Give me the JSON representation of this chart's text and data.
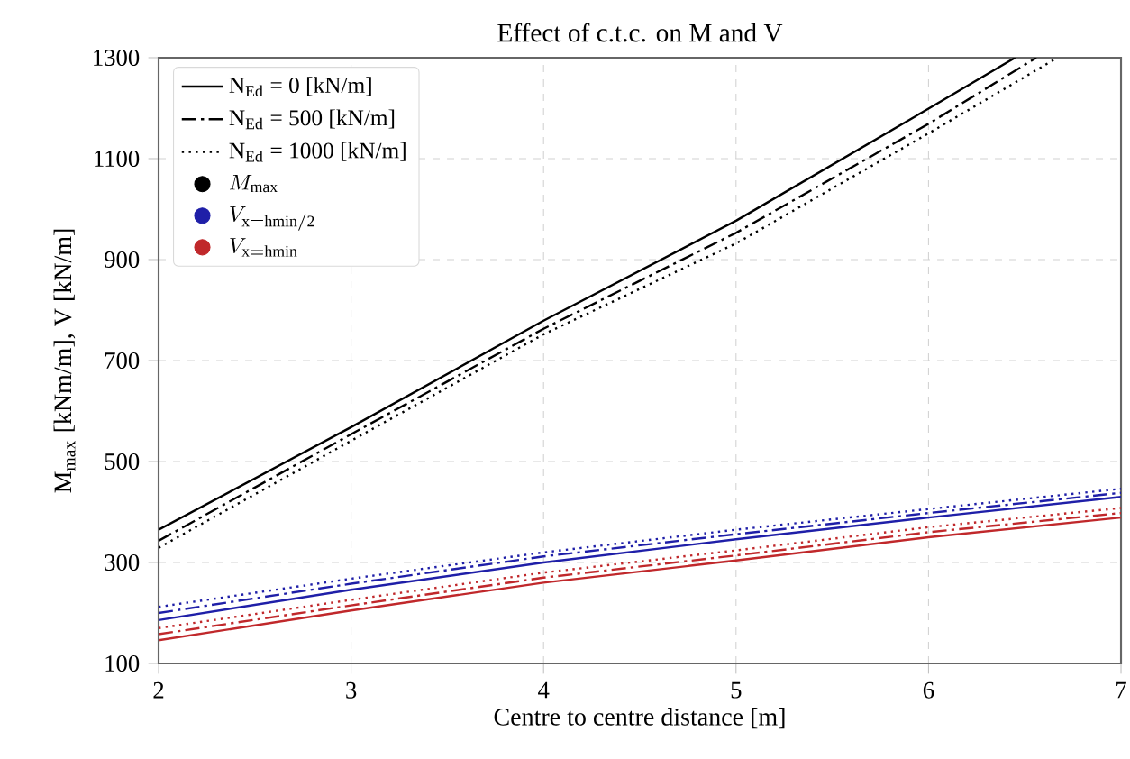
{
  "chart_data": {
    "type": "line",
    "title": "Effect of c.t.c. on M and V",
    "xlabel": "Centre to centre distance [m]",
    "ylabel": "M$_{max}$ [kNm/m],  V [kN/m]",
    "xlim": [
      2,
      7
    ],
    "ylim": [
      100,
      1300
    ],
    "xticks": [
      2,
      3,
      4,
      5,
      6,
      7
    ],
    "yticks": [
      100,
      300,
      500,
      700,
      900,
      1100,
      1300
    ],
    "grid": true,
    "legend": "top left",
    "marker": "none",
    "annotations": [
      "N$_{Ed}$ = 0 [kN/m]",
      "N$_{Ed}$ = 500 [kN/m]",
      "N$_{Ed}$ = 1000 [kN/m]"
    ],
    "series": [
      {
        "name": "M_{\\mathrm{max}}",
        "color": "#000000",
        "line_style": "solid",
        "x": [
          2,
          3,
          4,
          5,
          6,
          6.45
        ],
        "values": [
          365,
          568,
          779,
          977,
          1199,
          1300
        ]
      },
      {
        "color": "#000000",
        "line_style": "dashdot",
        "x": [
          2,
          3,
          4,
          5,
          6,
          6.56
        ],
        "values": [
          343,
          554,
          763,
          953,
          1169,
          1300
        ]
      },
      {
        "color": "#000000",
        "line_style": "dotted",
        "x": [
          2,
          3,
          4,
          5,
          6,
          6.67
        ],
        "values": [
          329,
          541,
          752,
          932,
          1150,
          1300
        ]
      },
      {
        "name": "V_{\\mathrm{x = hmin/2}}",
        "color": "#1f1fa8",
        "line_style": "solid",
        "x": [
          2,
          3,
          4,
          5,
          6,
          7
        ],
        "values": [
          186,
          246,
          300,
          346,
          389,
          430
        ]
      },
      {
        "color": "#1f1fa8",
        "line_style": "dashdot",
        "x": [
          2,
          3,
          4,
          5,
          6,
          7
        ],
        "values": [
          200,
          258,
          312,
          356,
          398,
          438
        ]
      },
      {
        "color": "#1f1fa8",
        "line_style": "dotted",
        "x": [
          2,
          3,
          4,
          5,
          6,
          7
        ],
        "values": [
          212,
          268,
          320,
          365,
          406,
          446
        ]
      },
      {
        "name": "V_{\\mathrm{x = hmin}}",
        "color": "#c0282b",
        "line_style": "solid",
        "x": [
          2,
          3,
          4,
          5,
          6,
          7
        ],
        "values": [
          146,
          205,
          260,
          304,
          350,
          389
        ]
      },
      {
        "color": "#c0282b",
        "line_style": "dashdot",
        "x": [
          2,
          3,
          4,
          5,
          6,
          7
        ],
        "values": [
          158,
          215,
          270,
          314,
          360,
          398
        ]
      },
      {
        "color": "#c0282b",
        "line_style": "dotted",
        "x": [
          2,
          3,
          4,
          5,
          6,
          7
        ],
        "values": [
          170,
          226,
          280,
          324,
          370,
          408
        ]
      }
    ]
  }
}
